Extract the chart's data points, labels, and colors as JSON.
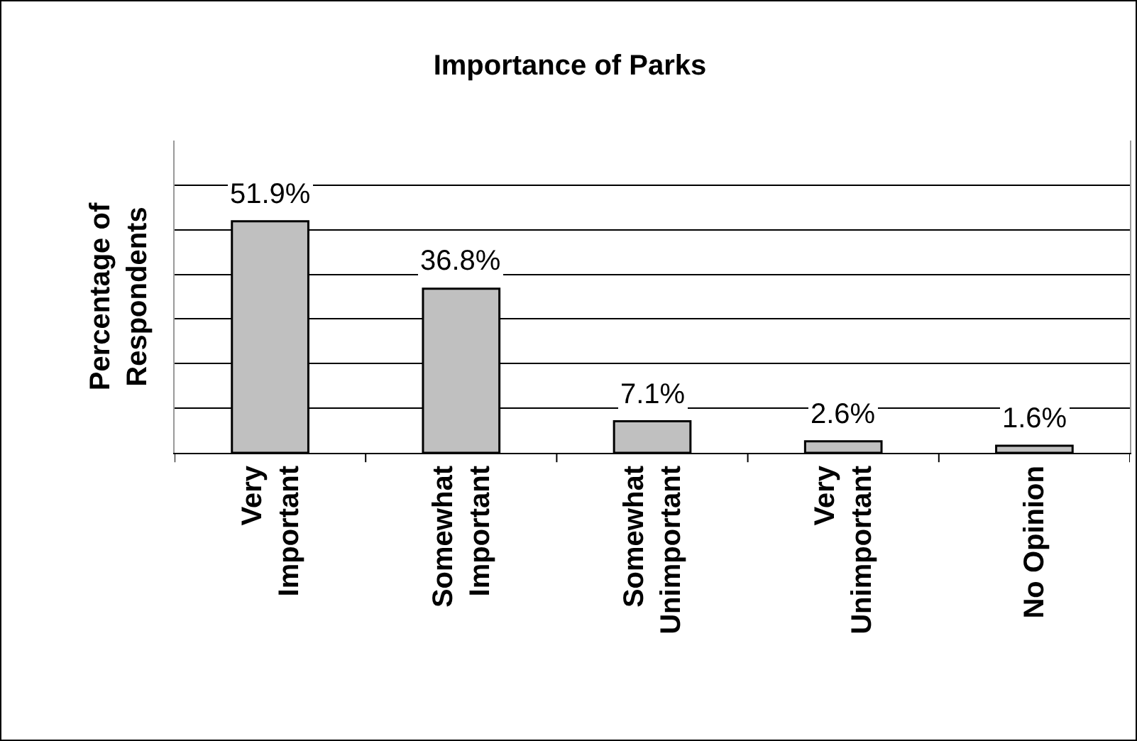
{
  "chart_data": {
    "type": "bar",
    "title": "Importance of Parks",
    "ylabel": "Percentage of Respondents",
    "categories": [
      "Very Important",
      "Somewhat Important",
      "Somewhat Unimportant",
      "Very Unimportant",
      "No Opinion"
    ],
    "values": [
      51.9,
      36.8,
      7.1,
      2.6,
      1.6
    ],
    "value_labels": [
      "51.9%",
      "36.8%",
      "7.1%",
      "2.6%",
      "1.6%"
    ],
    "color": "#c0c0c0",
    "ylim": [
      0,
      70
    ],
    "yticks": [
      {
        "value": 0,
        "label": null
      },
      {
        "value": 10,
        "label": null
      },
      {
        "value": 20,
        "label": null
      },
      {
        "value": 30,
        "label": null
      },
      {
        "value": 40,
        "label": null
      },
      {
        "value": 50,
        "label": null
      },
      {
        "value": 60,
        "label": null
      }
    ],
    "grid": "y",
    "legend": false
  }
}
